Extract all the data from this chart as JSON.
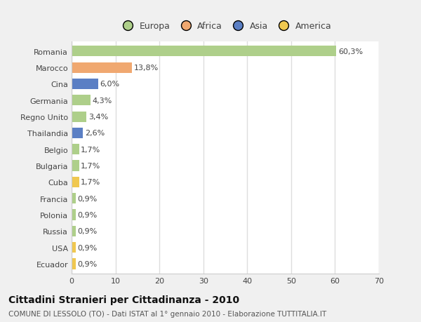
{
  "categories": [
    "Romania",
    "Marocco",
    "Cina",
    "Germania",
    "Regno Unito",
    "Thailandia",
    "Belgio",
    "Bulgaria",
    "Cuba",
    "Francia",
    "Polonia",
    "Russia",
    "USA",
    "Ecuador"
  ],
  "values": [
    60.3,
    13.8,
    6.0,
    4.3,
    3.4,
    2.6,
    1.7,
    1.7,
    1.7,
    0.9,
    0.9,
    0.9,
    0.9,
    0.9
  ],
  "labels": [
    "60,3%",
    "13,8%",
    "6,0%",
    "4,3%",
    "3,4%",
    "2,6%",
    "1,7%",
    "1,7%",
    "1,7%",
    "0,9%",
    "0,9%",
    "0,9%",
    "0,9%",
    "0,9%"
  ],
  "colors": [
    "#aecf8a",
    "#f0a870",
    "#5b7fc4",
    "#aecf8a",
    "#aecf8a",
    "#5b7fc4",
    "#aecf8a",
    "#aecf8a",
    "#f0c850",
    "#aecf8a",
    "#aecf8a",
    "#aecf8a",
    "#f0c850",
    "#f0c850"
  ],
  "legend_labels": [
    "Europa",
    "Africa",
    "Asia",
    "America"
  ],
  "legend_colors": [
    "#aecf8a",
    "#f0a870",
    "#5b7fc4",
    "#f0c850"
  ],
  "title": "Cittadini Stranieri per Cittadinanza - 2010",
  "subtitle": "COMUNE DI LESSOLO (TO) - Dati ISTAT al 1° gennaio 2010 - Elaborazione TUTTITALIA.IT",
  "xlim": [
    0,
    70
  ],
  "xticks": [
    0,
    10,
    20,
    30,
    40,
    50,
    60,
    70
  ],
  "figure_bg": "#f0f0f0",
  "plot_bg": "#ffffff",
  "grid_color": "#dddddd",
  "bar_height": 0.65,
  "label_fontsize": 8,
  "ytick_fontsize": 8,
  "xtick_fontsize": 8
}
